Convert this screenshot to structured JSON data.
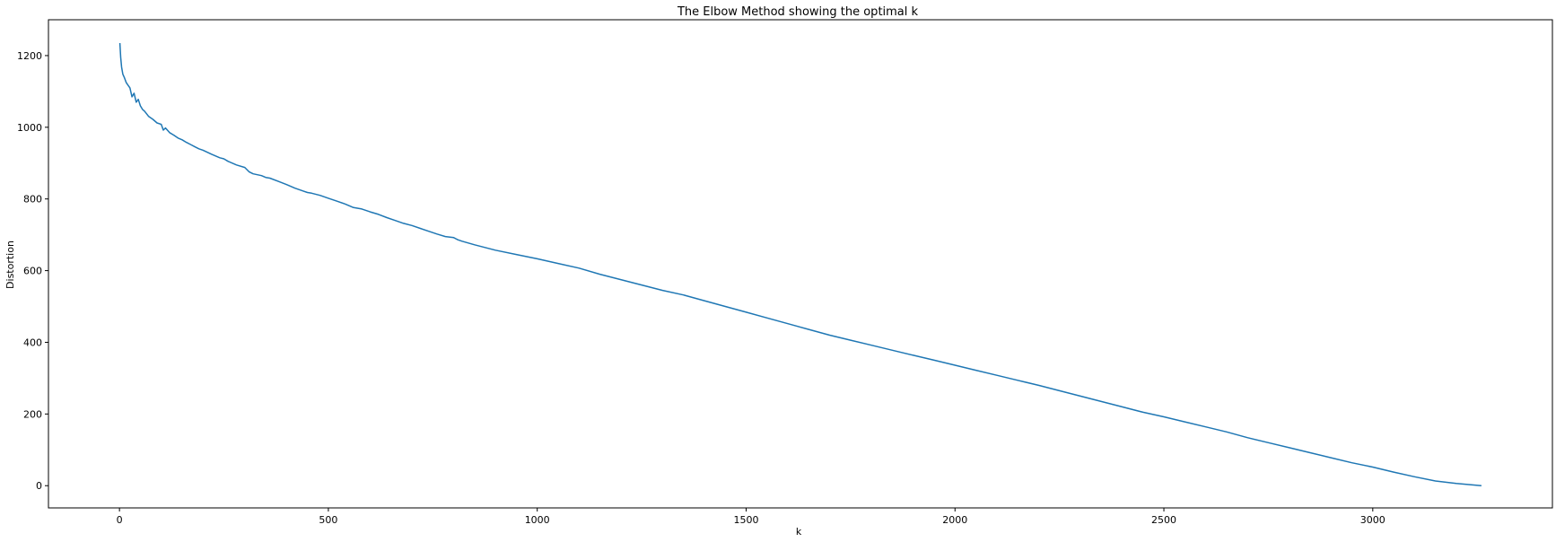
{
  "chart_data": {
    "type": "line",
    "title": "The Elbow Method showing the optimal k",
    "xlabel": "k",
    "ylabel": "Distortion",
    "xlim": [
      -170,
      3430
    ],
    "ylim": [
      -62,
      1300
    ],
    "x_ticks": [
      0,
      500,
      1000,
      1500,
      2000,
      2500,
      3000
    ],
    "y_ticks": [
      0,
      200,
      400,
      600,
      800,
      1000,
      1200
    ],
    "x_tick_labels": [
      "0",
      "500",
      "1000",
      "1500",
      "2000",
      "2500",
      "3000"
    ],
    "y_tick_labels": [
      "0",
      "200",
      "400",
      "600",
      "800",
      "1000",
      "1200"
    ],
    "grid": false,
    "legend": false,
    "line_color": "#1f77b4",
    "series": [
      {
        "x": [
          1,
          3,
          5,
          8,
          12,
          16,
          20,
          25,
          30,
          35,
          40,
          45,
          50,
          55,
          60,
          70,
          80,
          90,
          100,
          105,
          110,
          120,
          130,
          140,
          150,
          160,
          170,
          180,
          190,
          200,
          220,
          240,
          250,
          260,
          280,
          300,
          310,
          320,
          340,
          350,
          360,
          380,
          400,
          420,
          440,
          450,
          460,
          480,
          500,
          520,
          540,
          560,
          580,
          600,
          620,
          640,
          660,
          680,
          700,
          720,
          740,
          760,
          780,
          800,
          810,
          820,
          850,
          900,
          950,
          1000,
          1050,
          1100,
          1150,
          1200,
          1250,
          1300,
          1350,
          1400,
          1450,
          1500,
          1550,
          1600,
          1650,
          1700,
          1750,
          1800,
          1850,
          1900,
          1950,
          2000,
          2050,
          2100,
          2150,
          2200,
          2250,
          2300,
          2350,
          2400,
          2450,
          2500,
          2550,
          2600,
          2650,
          2700,
          2750,
          2800,
          2850,
          2900,
          2950,
          3000,
          3050,
          3100,
          3150,
          3200,
          3230,
          3260
        ],
        "y": [
          1235,
          1195,
          1168,
          1148,
          1138,
          1125,
          1118,
          1110,
          1085,
          1095,
          1070,
          1078,
          1060,
          1050,
          1045,
          1030,
          1022,
          1012,
          1008,
          992,
          998,
          985,
          978,
          970,
          965,
          958,
          952,
          946,
          940,
          936,
          925,
          915,
          912,
          905,
          895,
          888,
          876,
          870,
          865,
          860,
          858,
          849,
          840,
          830,
          822,
          818,
          816,
          810,
          802,
          794,
          786,
          776,
          772,
          764,
          757,
          748,
          740,
          732,
          726,
          718,
          710,
          702,
          695,
          692,
          686,
          682,
          672,
          657,
          645,
          633,
          620,
          607,
          590,
          575,
          560,
          545,
          532,
          516,
          500,
          484,
          468,
          452,
          436,
          420,
          406,
          392,
          378,
          364,
          350,
          336,
          322,
          308,
          294,
          280,
          265,
          250,
          235,
          220,
          205,
          192,
          178,
          164,
          150,
          134,
          120,
          106,
          92,
          78,
          64,
          52,
          38,
          25,
          13,
          6,
          3,
          0
        ]
      }
    ]
  }
}
